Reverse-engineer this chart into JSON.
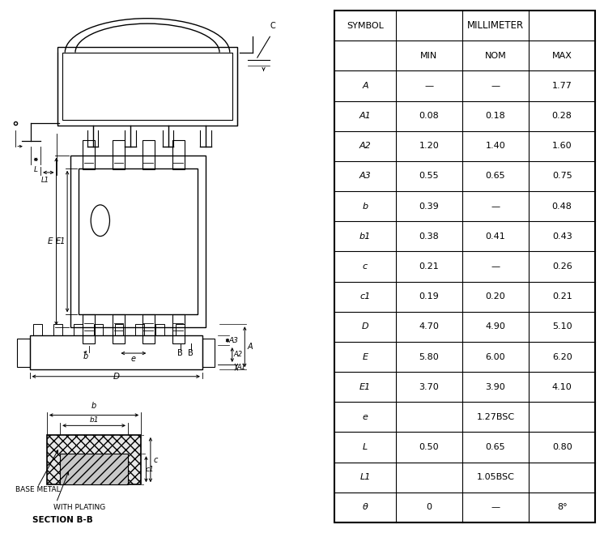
{
  "table_rows": [
    [
      "A",
      "—",
      "—",
      "1.77"
    ],
    [
      "A1",
      "0.08",
      "0.18",
      "0.28"
    ],
    [
      "A2",
      "1.20",
      "1.40",
      "1.60"
    ],
    [
      "A3",
      "0.55",
      "0.65",
      "0.75"
    ],
    [
      "b",
      "0.39",
      "—",
      "0.48"
    ],
    [
      "b1",
      "0.38",
      "0.41",
      "0.43"
    ],
    [
      "c",
      "0.21",
      "—",
      "0.26"
    ],
    [
      "c1",
      "0.19",
      "0.20",
      "0.21"
    ],
    [
      "D",
      "4.70",
      "4.90",
      "5.10"
    ],
    [
      "E",
      "5.80",
      "6.00",
      "6.20"
    ],
    [
      "E1",
      "3.70",
      "3.90",
      "4.10"
    ],
    [
      "e",
      "1.27BSC",
      "",
      ""
    ],
    [
      "L",
      "0.50",
      "0.65",
      "0.80"
    ],
    [
      "L1",
      "1.05BSC",
      "",
      ""
    ],
    [
      "θ",
      "0",
      "—",
      "8°"
    ]
  ],
  "bg_color": "#ffffff",
  "line_color": "#000000",
  "text_color": "#000000"
}
